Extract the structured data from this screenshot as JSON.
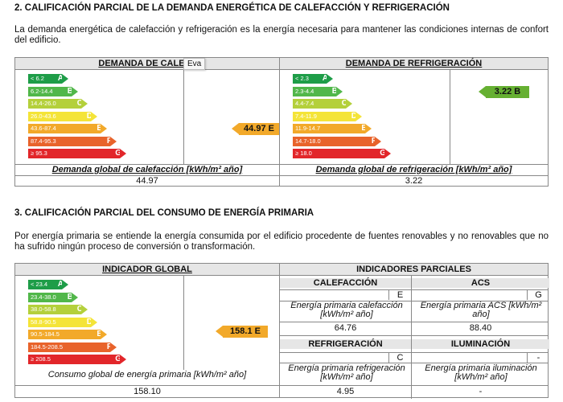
{
  "section2": {
    "title": "2. CALIFICACIÓN PARCIAL DE LA DEMANDA ENERGÉTICA DE CALEFACCIÓN Y REFRIGERACIÓN",
    "text": "La demanda energética de calefacción y refrigeración es la energía necesaria para mantener las condiciones internas de confort del edificio.",
    "heating": {
      "header": "DEMANDA DE CALEFA",
      "tooltip": "Eva",
      "bars": [
        {
          "range": "< 6.2",
          "letter": "A",
          "color": "#1e9d48"
        },
        {
          "range": "6.2-14.4",
          "letter": "B",
          "color": "#51b74a"
        },
        {
          "range": "14.4-26.0",
          "letter": "C",
          "color": "#b4d03b"
        },
        {
          "range": "26.0-43.6",
          "letter": "D",
          "color": "#f4e438"
        },
        {
          "range": "43.6-87.4",
          "letter": "E",
          "color": "#f2a92a"
        },
        {
          "range": "87.4-95.3",
          "letter": "F",
          "color": "#e8632b"
        },
        {
          "range": "≥ 95.3",
          "letter": "G",
          "color": "#e2262a"
        }
      ],
      "mark": "44.97 E",
      "global_label": "Demanda global de calefacción [kWh/m² año]",
      "global_value": "44.97"
    },
    "cooling": {
      "header": "DEMANDA DE REFRIGERACIÓN",
      "bars": [
        {
          "range": "< 2.3",
          "letter": "A",
          "color": "#1e9d48"
        },
        {
          "range": "2.3-4.4",
          "letter": "B",
          "color": "#51b74a"
        },
        {
          "range": "4.4-7.4",
          "letter": "C",
          "color": "#b4d03b"
        },
        {
          "range": "7.4-11.9",
          "letter": "D",
          "color": "#f4e438"
        },
        {
          "range": "11.9-14.7",
          "letter": "E",
          "color": "#f2a92a"
        },
        {
          "range": "14.7-18.0",
          "letter": "F",
          "color": "#e8632b"
        },
        {
          "range": "≥ 18.0",
          "letter": "G",
          "color": "#e2262a"
        }
      ],
      "mark": "3.22 B",
      "global_label": "Demanda global de refrigeración [kWh/m² año]",
      "global_value": "3.22"
    }
  },
  "section3": {
    "title": "3. CALIFICACIÓN PARCIAL DEL CONSUMO DE ENERGÍA PRIMARIA",
    "text": "Por energía primaria se entiende la energía consumida por el edificio procedente de fuentes renovables y no renovables que no ha sufrido ningún proceso de conversión o transformación.",
    "global": {
      "header": "INDICADOR GLOBAL",
      "bars": [
        {
          "range": "< 23.4",
          "letter": "A",
          "color": "#1e9d48"
        },
        {
          "range": "23.4-38.0",
          "letter": "B",
          "color": "#51b74a"
        },
        {
          "range": "38.0-58.8",
          "letter": "C",
          "color": "#b4d03b"
        },
        {
          "range": "58.8-90.5",
          "letter": "D",
          "color": "#f4e438"
        },
        {
          "range": "90.5-184.5",
          "letter": "E",
          "color": "#f2a92a"
        },
        {
          "range": "184.5-208.5",
          "letter": "F",
          "color": "#e8632b"
        },
        {
          "range": "≥ 208.5",
          "letter": "G",
          "color": "#e2262a"
        }
      ],
      "mark": "158.1 E",
      "global_label": "Consumo global de energía primaria [kWh/m² año]",
      "global_value": "158.10"
    },
    "partial": {
      "header": "INDICADORES PARCIALES",
      "heating": {
        "title": "CALEFACCIÓN",
        "letter": "E",
        "label": "Energía primaria calefacción [kWh/m² año]",
        "value": "64.76"
      },
      "acs": {
        "title": "ACS",
        "letter": "G",
        "label": "Energía primaria ACS [kWh/m² año]",
        "value": "88.40"
      },
      "cooling": {
        "title": "REFRIGERACIÓN",
        "letter": "C",
        "label": "Energía primaria refrigeración [kWh/m² año]",
        "value": "4.95"
      },
      "lighting": {
        "title": "ILUMINACIÓN",
        "letter": "-",
        "label": "Energía primaria iluminación [kWh/m² año]",
        "value": "-"
      }
    }
  }
}
